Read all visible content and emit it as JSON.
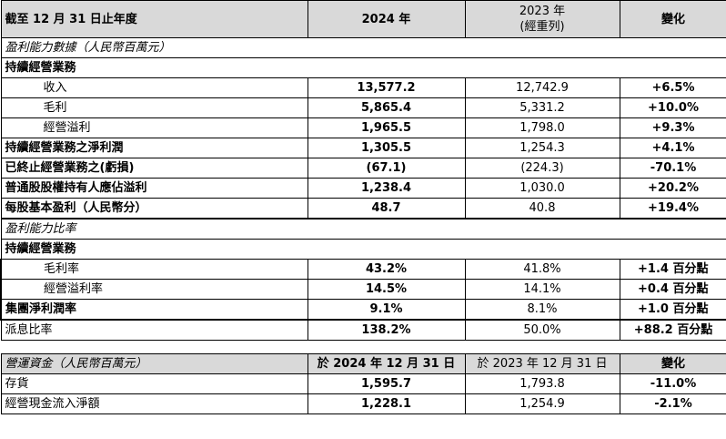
{
  "header": {
    "col1": "截至 12 月 31 日止年度",
    "col2": "2024 年",
    "col3_line1": "2023 年",
    "col3_line2": "(經重列)",
    "col4": "變化"
  },
  "section1_title": "盈利能力數據（人民幣百萬元）",
  "section1_subtitle": "持續經營業務",
  "rows1": [
    {
      "label": "收入",
      "y2024": "13,577.2",
      "y2023": "12,742.9",
      "change": "+6.5%"
    },
    {
      "label": "毛利",
      "y2024": "5,865.4",
      "y2023": "5,331.2",
      "change": "+10.0%"
    },
    {
      "label": "經營溢利",
      "y2024": "1,965.5",
      "y2023": "1,798.0",
      "change": "+9.3%"
    },
    {
      "label": "持續經營業務之淨利潤",
      "y2024": "1,305.5",
      "y2023": "1,254.3",
      "change": "+4.1%"
    },
    {
      "label": "已終止經營業務之(虧損)",
      "y2024": "(67.1)",
      "y2023": "(224.3)",
      "change": "-70.1%"
    },
    {
      "label": "普通股股權持有人應佔溢利",
      "y2024": "1,238.4",
      "y2023": "1,030.0",
      "change": "+20.2%"
    },
    {
      "label": "每股基本盈利（人民幣分）",
      "y2024": "48.7",
      "y2023": "40.8",
      "change": "+19.4%"
    }
  ],
  "section2_title": "盈利能力比率",
  "section2_subtitle": "持續經營業務",
  "rows2": [
    {
      "label": "毛利率",
      "y2024": "43.2%",
      "y2023": "41.8%",
      "change": "+1.4 百分點"
    },
    {
      "label": "經營溢利率",
      "y2024": "14.5%",
      "y2023": "14.1%",
      "change": "+0.4 百分點"
    },
    {
      "label": "集團淨利潤率",
      "y2024": "9.1%",
      "y2023": "8.1%",
      "change": "+1.0 百分點"
    },
    {
      "label": "派息比率",
      "y2024": "138.2%",
      "y2023": "50.0%",
      "change": "+88.2 百分點"
    }
  ],
  "header2": {
    "col1": "營運資金（人民幣百萬元）",
    "col2": "於 2024 年 12 月 31 日",
    "col3": "於 2023 年 12 月 31 日",
    "col4": "變化"
  },
  "rows3": [
    {
      "label": "存貨",
      "y2024": "1,595.7",
      "y2023": "1,793.8",
      "change": "-11.0%"
    },
    {
      "label": "經營現金流入淨額",
      "y2024": "1,228.1",
      "y2023": "1,254.9",
      "change": "-2.1%"
    }
  ]
}
